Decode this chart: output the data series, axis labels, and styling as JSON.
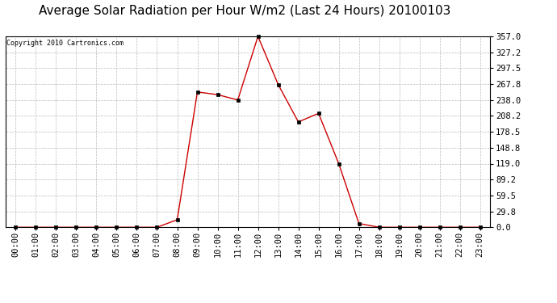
{
  "title": "Average Solar Radiation per Hour W/m2 (Last 24 Hours) 20100103",
  "copyright": "Copyright 2010 Cartronics.com",
  "hours": [
    "00:00",
    "01:00",
    "02:00",
    "03:00",
    "04:00",
    "05:00",
    "06:00",
    "07:00",
    "08:00",
    "09:00",
    "10:00",
    "11:00",
    "12:00",
    "13:00",
    "14:00",
    "15:00",
    "16:00",
    "17:00",
    "18:00",
    "19:00",
    "20:00",
    "21:00",
    "22:00",
    "23:00"
  ],
  "values": [
    0,
    0,
    0,
    0,
    0,
    0,
    0,
    0,
    14,
    253,
    248,
    238,
    357,
    267,
    197,
    213,
    119,
    7,
    0,
    0,
    0,
    0,
    0,
    0
  ],
  "line_color": "#cc0000",
  "marker": "s",
  "marker_size": 2.5,
  "background_color": "#ffffff",
  "grid_color": "#bbbbbb",
  "ylim": [
    0,
    357
  ],
  "yticks": [
    0.0,
    29.8,
    59.5,
    89.2,
    119.0,
    148.8,
    178.5,
    208.2,
    238.0,
    267.8,
    297.5,
    327.2,
    357.0
  ],
  "title_fontsize": 11,
  "copyright_fontsize": 6,
  "tick_fontsize": 7.5
}
